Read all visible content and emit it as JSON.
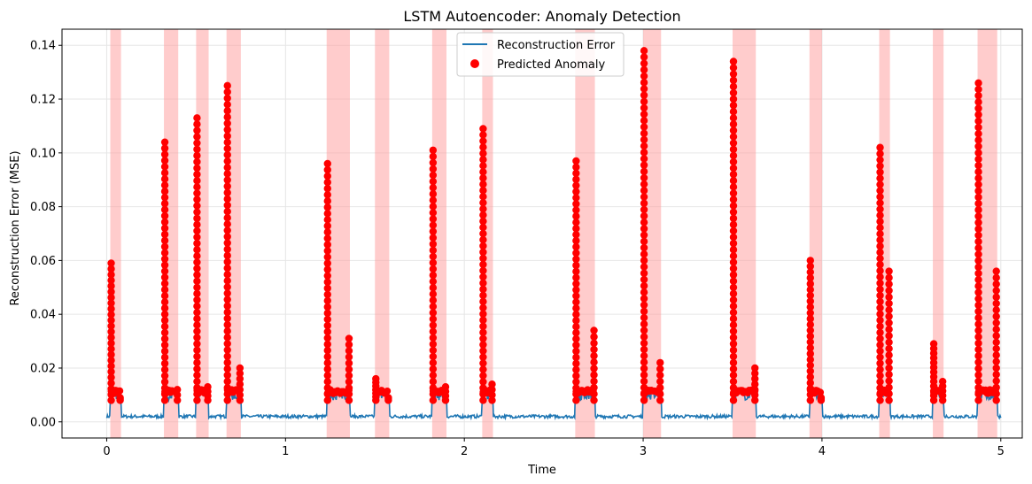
{
  "colors": {
    "line": "#1f77b4",
    "anomaly_point": "#ff0000",
    "anomaly_span": "#ff9999",
    "grid": "#e6e6e6",
    "axes": "#000000"
  },
  "chart_data": {
    "type": "line",
    "title": "LSTM Autoencoder: Anomaly Detection",
    "xlabel": "Time",
    "ylabel": "Reconstruction Error (MSE)",
    "xlim": [
      -0.25,
      5.12
    ],
    "ylim": [
      -0.006,
      0.146
    ],
    "xticks": [
      0,
      1,
      2,
      3,
      4,
      5
    ],
    "xtick_labels": [
      "0",
      "1",
      "2",
      "3",
      "4",
      "5"
    ],
    "yticks": [
      0,
      0.02,
      0.04,
      0.06,
      0.08,
      0.1,
      0.12,
      0.14
    ],
    "ytick_labels": [
      "0.00",
      "0.02",
      "0.04",
      "0.06",
      "0.08",
      "0.10",
      "0.12",
      "0.14"
    ],
    "grid": true,
    "legend_position": "top-center",
    "baseline": 0.002,
    "series": [
      {
        "name": "Reconstruction Error",
        "kind": "line"
      },
      {
        "name": "Predicted Anomaly",
        "kind": "scatter"
      }
    ],
    "anomaly_regions": [
      {
        "start": 0.02,
        "end": 0.08,
        "peak": 0.059,
        "tail": 0.009
      },
      {
        "start": 0.32,
        "end": 0.4,
        "peak": 0.104,
        "tail": 0.012
      },
      {
        "start": 0.5,
        "end": 0.57,
        "peak": 0.113,
        "tail": 0.013
      },
      {
        "start": 0.67,
        "end": 0.75,
        "peak": 0.125,
        "tail": 0.02
      },
      {
        "start": 1.23,
        "end": 1.36,
        "peak": 0.096,
        "tail": 0.031
      },
      {
        "start": 1.5,
        "end": 1.58,
        "peak": 0.016,
        "tail": 0.009
      },
      {
        "start": 1.82,
        "end": 1.9,
        "peak": 0.101,
        "tail": 0.013
      },
      {
        "start": 2.1,
        "end": 2.16,
        "peak": 0.109,
        "tail": 0.014
      },
      {
        "start": 2.62,
        "end": 2.73,
        "peak": 0.097,
        "tail": 0.034
      },
      {
        "start": 3.0,
        "end": 3.1,
        "peak": 0.138,
        "tail": 0.022
      },
      {
        "start": 3.5,
        "end": 3.63,
        "peak": 0.134,
        "tail": 0.02
      },
      {
        "start": 3.93,
        "end": 4.0,
        "peak": 0.06,
        "tail": 0.009
      },
      {
        "start": 4.32,
        "end": 4.38,
        "peak": 0.102,
        "tail": 0.056
      },
      {
        "start": 4.62,
        "end": 4.68,
        "peak": 0.029,
        "tail": 0.015
      },
      {
        "start": 4.87,
        "end": 4.98,
        "peak": 0.126,
        "tail": 0.056
      }
    ]
  }
}
